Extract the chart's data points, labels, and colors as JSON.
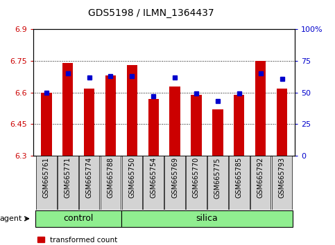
{
  "title": "GDS5198 / ILMN_1364437",
  "samples": [
    "GSM665761",
    "GSM665771",
    "GSM665774",
    "GSM665788",
    "GSM665750",
    "GSM665754",
    "GSM665769",
    "GSM665770",
    "GSM665775",
    "GSM665785",
    "GSM665792",
    "GSM665793"
  ],
  "control_count": 4,
  "silica_count": 8,
  "red_values": [
    6.6,
    6.74,
    6.62,
    6.68,
    6.73,
    6.57,
    6.63,
    6.59,
    6.52,
    6.59,
    6.75,
    6.62
  ],
  "blue_values_pct": [
    50,
    65,
    62,
    63,
    63,
    47,
    62,
    49,
    43,
    49,
    65,
    61
  ],
  "ylim_left": [
    6.3,
    6.9
  ],
  "yticks_left": [
    6.3,
    6.45,
    6.6,
    6.75,
    6.9
  ],
  "yticks_left_labels": [
    "6.3",
    "6.45",
    "6.6",
    "6.75",
    "6.9"
  ],
  "yticks_right": [
    0,
    25,
    50,
    75,
    100
  ],
  "yticks_right_labels": [
    "0",
    "25",
    "50",
    "75",
    "100%"
  ],
  "ybase": 6.3,
  "bar_color": "#cc0000",
  "dot_color": "#0000cc",
  "group_color": "#90ee90",
  "bg_xtick": "#d3d3d3",
  "bar_width": 0.5,
  "dot_markersize": 4,
  "grid_yticks": [
    6.45,
    6.6,
    6.75
  ],
  "title_fontsize": 10,
  "ytick_fontsize": 8,
  "xtick_fontsize": 7,
  "agent_fontsize": 8,
  "group_fontsize": 9,
  "legend_fontsize": 7.5
}
